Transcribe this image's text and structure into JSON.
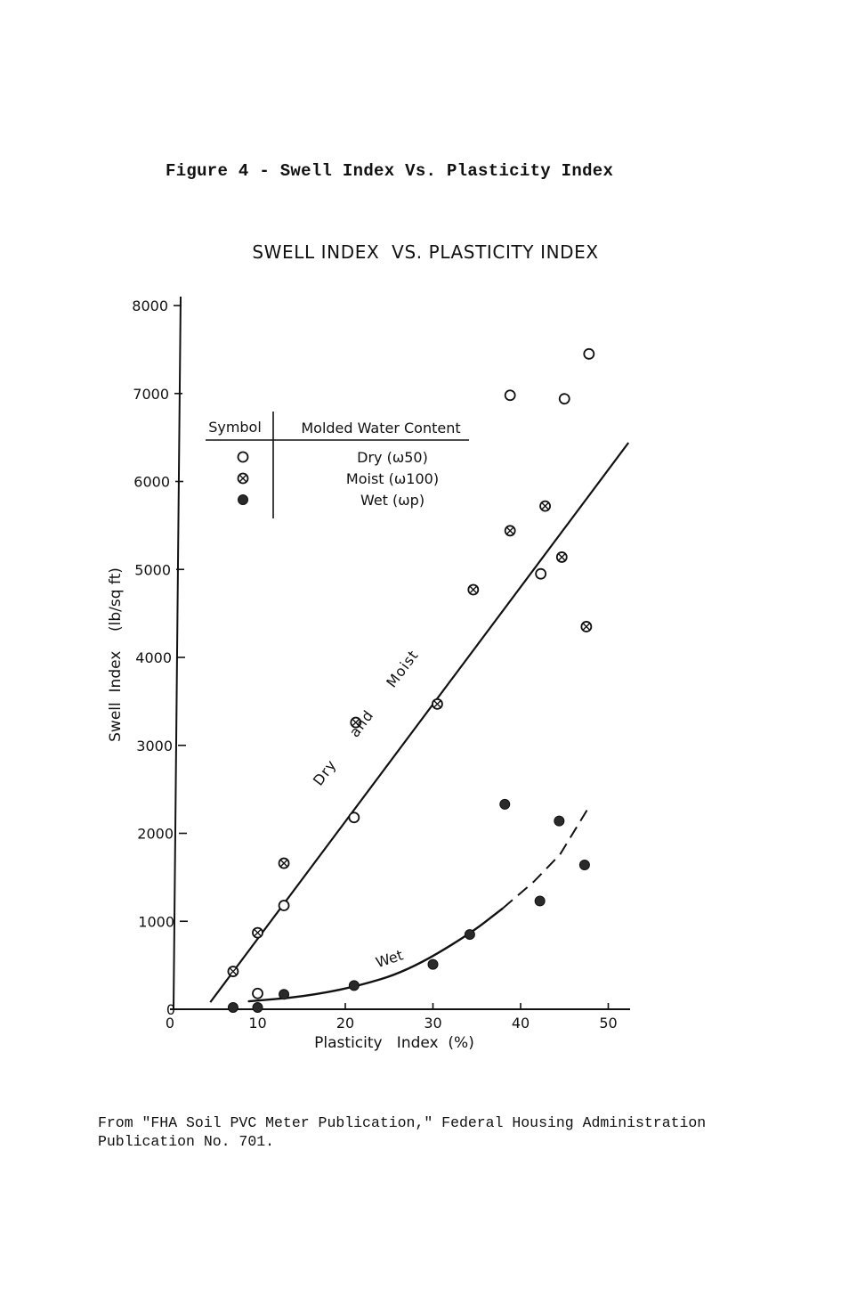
{
  "figure_caption": "Figure 4 - Swell Index Vs. Plasticity Index",
  "source_note": {
    "line1": "From \"FHA Soil PVC Meter Publication,\" Federal Housing Administration",
    "line2": "Publication No. 701."
  },
  "chart_data": {
    "type": "scatter",
    "title": "SWELL INDEX  VS. PLASTICITY INDEX",
    "xlabel": "Plasticity   Index  (%)",
    "ylabel": "Swell  Index    (lb/sq ft)",
    "xlim": [
      0,
      52
    ],
    "ylim": [
      0,
      8000
    ],
    "x_ticks": [
      "0",
      "10",
      "20",
      "30",
      "40",
      "50"
    ],
    "y_ticks": [
      "0",
      "1000",
      "2000",
      "3000",
      "4000",
      "5000",
      "6000",
      "7000",
      "8000"
    ],
    "legend": {
      "placement": "top-left",
      "symbol_header": "Symbol",
      "content_header": "Molded Water Content",
      "entries": [
        {
          "marker": "open-circle",
          "label": "Dry (ω50)"
        },
        {
          "marker": "crossed-circle",
          "label": "Moist (ω100)"
        },
        {
          "marker": "filled-circle",
          "label": "Wet (ωp)"
        }
      ]
    },
    "series": [
      {
        "name": "Dry (ω50)",
        "marker": "open-circle",
        "points": [
          [
            10,
            180
          ],
          [
            13,
            1180
          ],
          [
            21,
            2180
          ],
          [
            38.8,
            6980
          ],
          [
            42.3,
            4950
          ],
          [
            45,
            6940
          ],
          [
            47.8,
            7450
          ]
        ]
      },
      {
        "name": "Moist (ω100)",
        "marker": "crossed-circle",
        "points": [
          [
            7.2,
            430
          ],
          [
            10,
            870
          ],
          [
            13,
            1660
          ],
          [
            21.2,
            3260
          ],
          [
            30.5,
            3470
          ],
          [
            34.6,
            4770
          ],
          [
            38.8,
            5440
          ],
          [
            42.8,
            5720
          ],
          [
            44.7,
            5140
          ],
          [
            47.5,
            4350
          ]
        ]
      },
      {
        "name": "Wet (ωp)",
        "marker": "filled-circle",
        "points": [
          [
            7.2,
            20
          ],
          [
            10,
            20
          ],
          [
            13,
            170
          ],
          [
            21,
            270
          ],
          [
            30,
            510
          ],
          [
            34.2,
            850
          ],
          [
            38.2,
            2330
          ],
          [
            42.2,
            1230
          ],
          [
            44.4,
            2140
          ],
          [
            47.3,
            1640
          ]
        ]
      }
    ],
    "trend_lines": [
      {
        "label": "Dry and Moist",
        "style": "solid",
        "points": [
          [
            4.6,
            80
          ],
          [
            52.3,
            6440
          ]
        ]
      },
      {
        "label": "Wet",
        "style": "solid-then-dashed",
        "solid_points": [
          [
            9,
            90
          ],
          [
            15,
            140
          ],
          [
            21,
            250
          ],
          [
            27,
            430
          ],
          [
            34,
            840
          ],
          [
            38,
            1150
          ]
        ],
        "dashed_points": [
          [
            38,
            1150
          ],
          [
            41.5,
            1450
          ],
          [
            44.5,
            1760
          ],
          [
            47.8,
            2300
          ]
        ]
      }
    ]
  }
}
